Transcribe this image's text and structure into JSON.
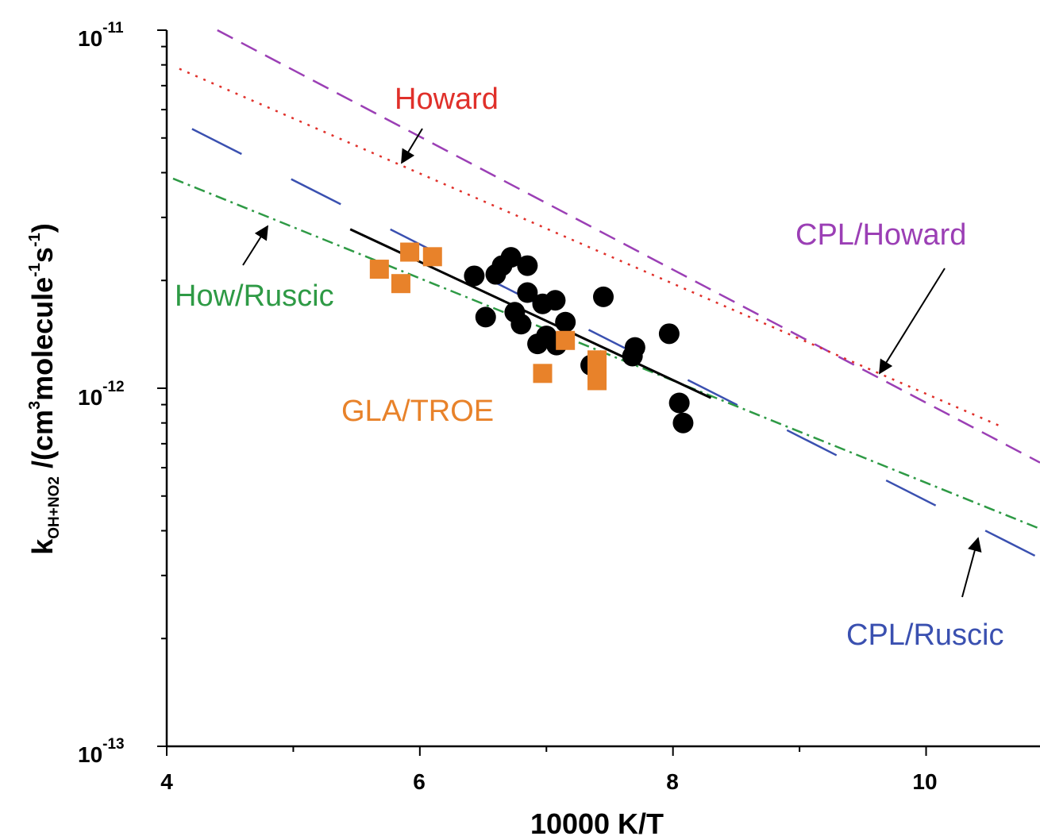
{
  "chart_data": {
    "type": "scatter",
    "xlabel": "10000 K/T",
    "ylabel": {
      "k": "k",
      "k_sub": "OH+NO2",
      "part1": " /(cm",
      "sup1": "3",
      "part2": "molecule",
      "sup2": "-1",
      "part3": "s",
      "sup3": "-1",
      "part4": ")"
    },
    "x_range": [
      4,
      10.9
    ],
    "y_range": [
      1e-13,
      1e-11
    ],
    "y_scale": "log",
    "x_ticks": [
      {
        "value": 4,
        "label": "4"
      },
      {
        "value": 6,
        "label": "6"
      },
      {
        "value": 8,
        "label": "8"
      },
      {
        "value": 10,
        "label": "10"
      }
    ],
    "y_ticks": [
      {
        "value": 1e-11,
        "base": "10",
        "exp": "-11"
      },
      {
        "value": 1e-12,
        "base": "10",
        "exp": "-12"
      },
      {
        "value": 1e-13,
        "base": "10",
        "exp": "-13"
      }
    ],
    "lines": [
      {
        "id": "cpl-howard",
        "color": "#9b3fb5",
        "dash": "22,12",
        "x": [
          4.4,
          10.9
        ],
        "y": [
          1e-11,
          6.2e-13
        ]
      },
      {
        "id": "howard",
        "color": "#e0302a",
        "dash": "3,8",
        "x": [
          4.1,
          10.6
        ],
        "y": [
          7.8e-12,
          7.8e-13
        ]
      },
      {
        "id": "cpl-ruscic",
        "color": "#3a50b0",
        "dash": "70,70",
        "x": [
          4.2,
          10.9
        ],
        "y": [
          5.3e-12,
          3.35e-13
        ]
      },
      {
        "id": "how-ruscic",
        "color": "#2e9a45",
        "dash": "14,6,3,6",
        "x": [
          4.05,
          10.9
        ],
        "y": [
          3.85e-12,
          4.05e-13
        ]
      },
      {
        "id": "fit",
        "color": "#000000",
        "dash": "",
        "x": [
          5.45,
          8.3
        ],
        "y": [
          2.78e-12,
          9.4e-13
        ]
      }
    ],
    "series": [
      {
        "id": "measurements",
        "marker": "circle",
        "color": "#000000",
        "points": [
          [
            6.43,
            2.06e-12
          ],
          [
            6.52,
            1.58e-12
          ],
          [
            6.6,
            2.08e-12
          ],
          [
            6.65,
            2.2e-12
          ],
          [
            6.72,
            2.32e-12
          ],
          [
            6.75,
            1.63e-12
          ],
          [
            6.8,
            1.51e-12
          ],
          [
            6.85,
            2.2e-12
          ],
          [
            6.85,
            1.85e-12
          ],
          [
            6.93,
            1.33e-12
          ],
          [
            6.97,
            1.72e-12
          ],
          [
            7.0,
            1.4e-12
          ],
          [
            7.07,
            1.76e-12
          ],
          [
            7.08,
            1.32e-12
          ],
          [
            7.15,
            1.53e-12
          ],
          [
            7.35,
            1.16e-12
          ],
          [
            7.45,
            1.8e-12
          ],
          [
            7.68,
            1.23e-12
          ],
          [
            7.7,
            1.3e-12
          ],
          [
            7.97,
            1.42e-12
          ],
          [
            8.05,
            9.1e-13
          ],
          [
            8.08,
            8e-13
          ]
        ]
      },
      {
        "id": "gla-troe",
        "marker": "square",
        "color": "#e8822a",
        "points": [
          [
            5.68,
            2.15e-12
          ],
          [
            5.85,
            1.96e-12
          ],
          [
            5.92,
            2.4e-12
          ],
          [
            6.1,
            2.33e-12
          ],
          [
            6.97,
            1.1e-12
          ],
          [
            7.15,
            1.36e-12
          ],
          [
            7.4,
            1.2e-12
          ],
          [
            7.4,
            1.12e-12
          ],
          [
            7.4,
            1.05e-12
          ]
        ]
      }
    ],
    "annotations": [
      {
        "id": "howard-label",
        "text": "Howard",
        "color": "#e0302a"
      },
      {
        "id": "cpl-howard-label",
        "text": "CPL/Howard",
        "color": "#9b3fb5"
      },
      {
        "id": "how-ruscic-label",
        "text": "How/Ruscic",
        "color": "#2e9a45"
      },
      {
        "id": "gla-troe-label",
        "text": "GLA/TROE",
        "color": "#e8822a"
      },
      {
        "id": "cpl-ruscic-label",
        "text": "CPL/Ruscic",
        "color": "#3a50b0"
      }
    ]
  }
}
